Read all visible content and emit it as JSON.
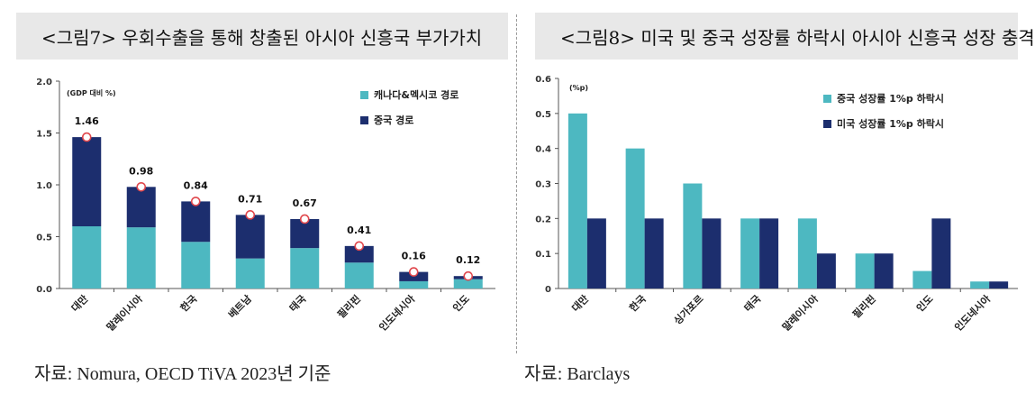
{
  "left": {
    "title": "<그림7> 우회수출을 통해 창출된 아시아 신흥국 부가가치",
    "source": "자료: Nomura, OECD TiVA 2023년 기준",
    "chart_data": {
      "type": "bar",
      "stacked": true,
      "unit_label": "(GDP 대비 %)",
      "categories": [
        "대만",
        "말레이시아",
        "한국",
        "베트남",
        "태국",
        "필리핀",
        "인도네시아",
        "인도"
      ],
      "series": [
        {
          "name": "캐나다&멕시코 경로",
          "values": [
            0.6,
            0.59,
            0.45,
            0.29,
            0.39,
            0.25,
            0.07,
            0.09
          ],
          "color": "#4db8c1"
        },
        {
          "name": "중국 경로",
          "values": [
            0.86,
            0.39,
            0.39,
            0.42,
            0.28,
            0.16,
            0.09,
            0.03
          ],
          "color": "#1c2e6e"
        }
      ],
      "totals": [
        1.46,
        0.98,
        0.84,
        0.71,
        0.67,
        0.41,
        0.16,
        0.12
      ],
      "total_labels": [
        "1.46",
        "0.98",
        "0.84",
        "0.71",
        "0.67",
        "0.41",
        "0.16",
        "0.12"
      ],
      "yticks": [
        "0.0",
        "0.5",
        "1.0",
        "1.5",
        "2.0"
      ],
      "ylim": [
        0,
        2.0
      ],
      "legend_position": "top-right"
    }
  },
  "right": {
    "title": "<그림8> 미국 및 중국 성장률 하락시 아시아 신흥국 성장 충격",
    "source": "자료: Barclays",
    "chart_data": {
      "type": "bar",
      "stacked": false,
      "unit_label": "(%p)",
      "categories": [
        "대만",
        "한국",
        "싱가포르",
        "태국",
        "말레이시아",
        "필리핀",
        "인도",
        "인도네시아"
      ],
      "series": [
        {
          "name": "중국 성장률 1%p 하락시",
          "values": [
            0.5,
            0.4,
            0.3,
            0.2,
            0.2,
            0.1,
            0.05,
            0.02
          ],
          "color": "#4db8c1"
        },
        {
          "name": "미국 성장률 1%p 하락시",
          "values": [
            0.2,
            0.2,
            0.2,
            0.2,
            0.1,
            0.1,
            0.2,
            0.02
          ],
          "color": "#1c2e6e"
        }
      ],
      "yticks": [
        "0",
        "0.1",
        "0.2",
        "0.3",
        "0.4",
        "0.5",
        "0.6"
      ],
      "ylim": [
        0,
        0.6
      ],
      "legend_position": "top-right"
    }
  }
}
